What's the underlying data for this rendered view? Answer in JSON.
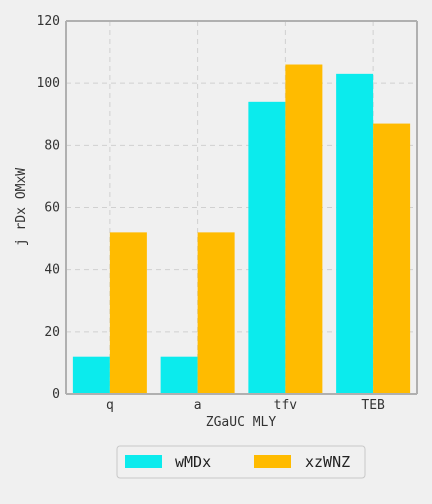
{
  "chart_data": {
    "type": "bar",
    "categories": [
      "q",
      "a",
      "tfv",
      "TEB"
    ],
    "series": [
      {
        "name": "wMDx",
        "values": [
          12,
          12,
          94,
          103
        ],
        "color": "#0bebed"
      },
      {
        "name": "xzWNZ",
        "values": [
          52,
          52,
          106,
          87
        ],
        "color": "#ffbb00"
      }
    ],
    "xlabel": "ZGaUC MLY",
    "ylabel": "j rDx OMxW",
    "ylim": [
      0,
      120
    ],
    "yticks": [
      0,
      20,
      40,
      60,
      80,
      100,
      120
    ],
    "grid": true,
    "legend": "bottom-center"
  }
}
